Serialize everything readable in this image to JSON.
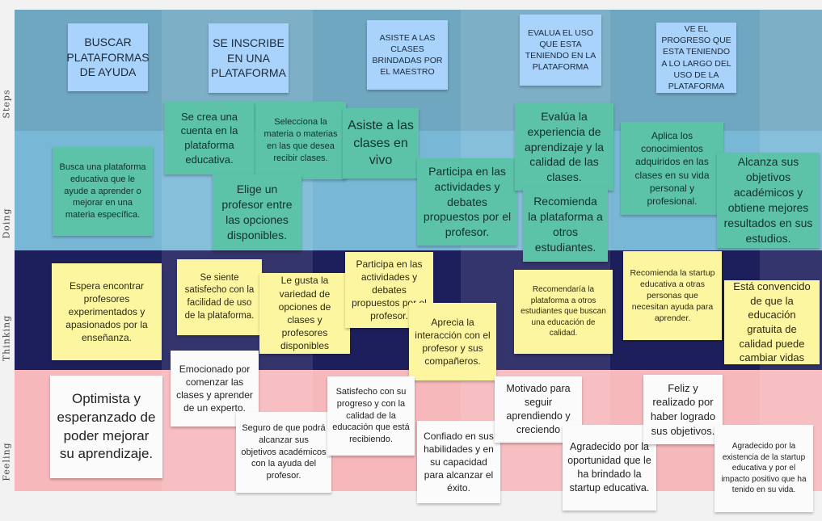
{
  "rows": {
    "steps": "Steps",
    "doing": "Doing",
    "thinking": "Thinking",
    "feeling": "Feeling"
  },
  "colors": {
    "steps_band": "#6fa6c0",
    "doing_band": "#78b8d6",
    "thinking_band": "#1d1f5c",
    "feeling_band": "#f6b8bb",
    "note_blue": "#a9d3fa",
    "note_teal": "#5cc2a8",
    "note_yellow": "#fdf6a0",
    "note_white": "#fbfbfb"
  },
  "steps": [
    "BUSCAR PLATAFORMAS DE AYUDA",
    "SE INSCRIBE EN UNA PLATAFORMA",
    "ASISTE A LAS CLASES BRINDADAS POR EL MAESTRO",
    "EVALUA EL USO QUE ESTA TENIENDO EN LA PLATAFORMA",
    "VE EL PROGRESO QUE ESTA TENIENDO A LO LARGO DEL USO DE LA PLATAFORMA"
  ],
  "doing": [
    "Busca una plataforma educativa que le ayude a aprender o mejorar en una materia específica.",
    "Se crea una cuenta en la plataforma educativa.",
    "Selecciona la materia o materias en las que desea recibir clases.",
    "Elige un profesor entre las opciones disponibles.",
    "Asiste a las clases en vivo",
    "Participa en las actividades y debates propuestos por el profesor.",
    "Evalúa la experiencia de aprendizaje y la calidad de las clases.",
    "Recomienda la plataforma a otros estudiantes.",
    "Aplica los conocimientos adquiridos en las clases en su vida personal y profesional.",
    "Alcanza sus objetivos académicos y obtiene mejores resultados en sus estudios."
  ],
  "thinking": [
    "Espera encontrar profesores experimentados y apasionados por la enseñanza.",
    "Se siente satisfecho con la facilidad de uso de la plataforma.",
    "Le gusta la variedad de opciones de clases y profesores disponibles",
    "Participa en las actividades y debates propuestos por el profesor.",
    "Aprecia la interacción con el profesor y sus compañeros.",
    "Recomendaría la plataforma a otros estudiantes que buscan una educación de calidad.",
    "Recomienda la startup educativa a otras personas que necesitan ayuda para aprender.",
    "Está convencido de que la educación gratuita de calidad puede cambiar vidas"
  ],
  "feeling": [
    "Optimista y esperanzado de poder mejorar su aprendizaje.",
    "Emocionado por comenzar las clases y aprender de un experto.",
    "Seguro de que podrá alcanzar sus objetivos académicos con la ayuda del profesor.",
    "Satisfecho con su progreso y con la calidad de la educación que está recibiendo.",
    "Confiado en sus habilidades y en su capacidad para alcanzar el éxito.",
    "Motivado para seguir aprendiendo y creciendo",
    "Agradecido por la oportunidad que le ha brindado la startup educativa.",
    "Feliz y realizado por haber logrado sus objetivos.",
    "Agradecido por la existencia de la startup educativa y por el impacto positivo que ha tenido en su vida."
  ]
}
